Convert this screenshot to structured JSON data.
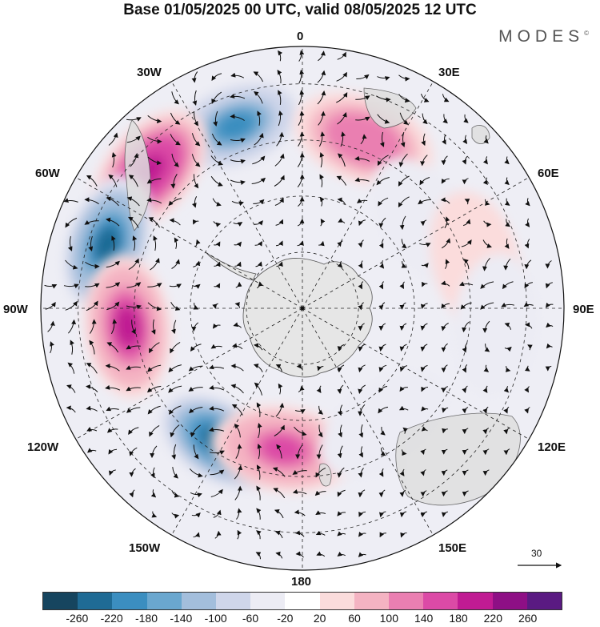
{
  "title": "Base 01/05/2025 00 UTC, valid 08/05/2025 12 UTC",
  "brand": "MODES",
  "brand_mark": "©",
  "longitude_labels": {
    "top": "0",
    "bottom": "180",
    "left": "90W",
    "right": "90E",
    "upper_left_1": "30W",
    "upper_left_2": "60W",
    "upper_right_1": "30E",
    "upper_right_2": "60E",
    "lower_left_1": "120W",
    "lower_left_2": "150W",
    "lower_right_1": "120E",
    "lower_right_2": "150E"
  },
  "reference_vector_label": "30",
  "colorbar": {
    "colors": [
      "#16455f",
      "#1f6b95",
      "#3b8ec0",
      "#6aa7cf",
      "#a3bedc",
      "#cfd6ea",
      "#ececf4",
      "#ffffff",
      "#fbdcdc",
      "#f4b3c2",
      "#ea7fb1",
      "#dc4aa6",
      "#c01b93",
      "#8e0f85",
      "#5a1a82"
    ],
    "tick_labels": [
      "-260",
      "-220",
      "-180",
      "-140",
      "-100",
      "-60",
      "-20",
      "20",
      "60",
      "100",
      "140",
      "180",
      "220",
      "260"
    ]
  },
  "anomaly_centers": [
    {
      "lon": -20,
      "lat_from_pole_deg": 52,
      "value": -210,
      "kind": "negative"
    },
    {
      "lon": -48,
      "lat_from_pole_deg": 55,
      "value": 230,
      "kind": "positive"
    },
    {
      "lon": -72,
      "lat_from_pole_deg": 55,
      "value": -250,
      "kind": "negative"
    },
    {
      "lon": -96,
      "lat_from_pole_deg": 47,
      "value": 210,
      "kind": "positive"
    },
    {
      "lon": -148,
      "lat_from_pole_deg": 42,
      "value": -240,
      "kind": "negative"
    },
    {
      "lon": -172,
      "lat_from_pole_deg": 38,
      "value": 170,
      "kind": "positive"
    },
    {
      "lon": 20,
      "lat_from_pole_deg": 48,
      "value": 150,
      "kind": "positive"
    },
    {
      "lon": 55,
      "lat_from_pole_deg": 40,
      "value": -70,
      "kind": "negative"
    },
    {
      "lon": 75,
      "lat_from_pole_deg": 48,
      "value": 70,
      "kind": "positive"
    },
    {
      "lon": 95,
      "lat_from_pole_deg": 52,
      "value": -50,
      "kind": "negative"
    },
    {
      "lon": 145,
      "lat_from_pole_deg": 38,
      "value": -40,
      "kind": "negative"
    }
  ]
}
